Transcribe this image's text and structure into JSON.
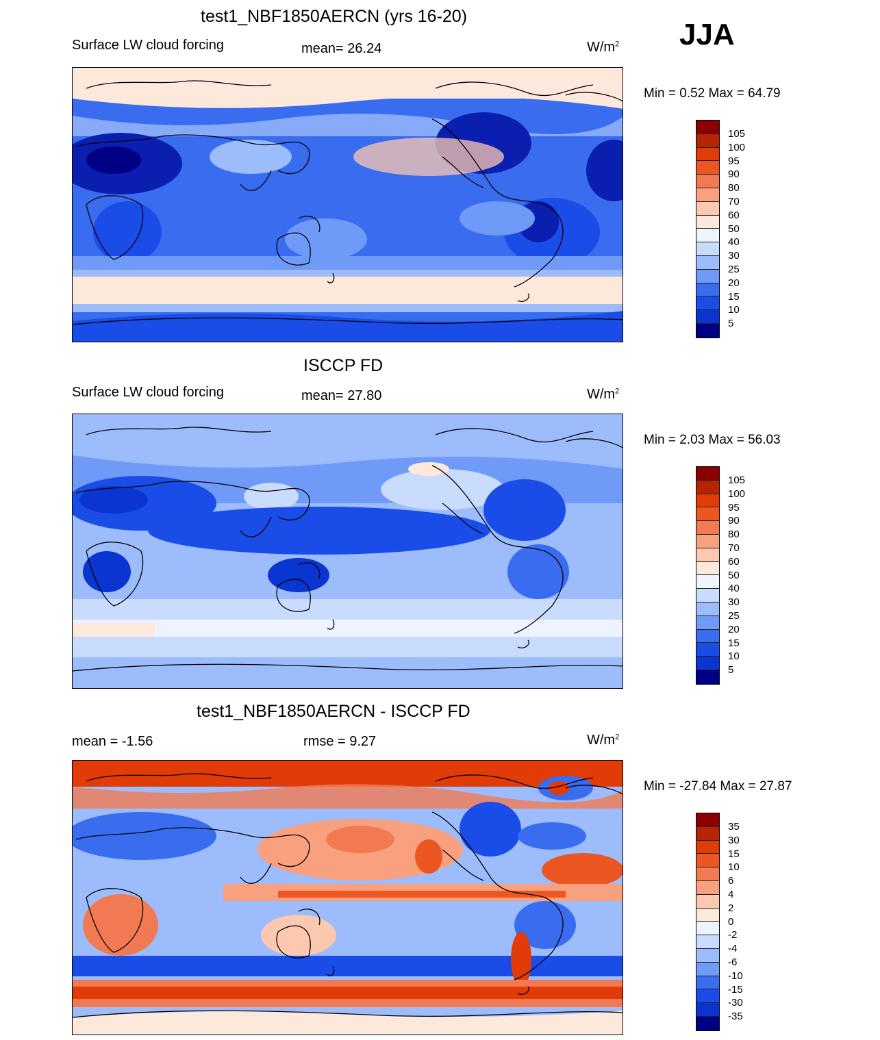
{
  "season": "JJA",
  "colors": {
    "seq": [
      "#000085",
      "#0a1fb0",
      "#0a35d0",
      "#1a4de8",
      "#3a6cf0",
      "#6f9af7",
      "#9cbcfb",
      "#c9dcfd",
      "#eef4fe",
      "#fde8dc",
      "#fcc8b0",
      "#f9a07f",
      "#f27a52",
      "#ec5623",
      "#e13c07",
      "#b52504",
      "#8b0000"
    ],
    "div": [
      "#000085",
      "#0a1fb0",
      "#0a35d0",
      "#1a4de8",
      "#3a6cf0",
      "#6f9af7",
      "#9cbcfb",
      "#c9dcfd",
      "#eef4fe",
      "#fde8dc",
      "#fcc8b0",
      "#f9a07f",
      "#f27a52",
      "#ec5623",
      "#e13c07",
      "#b52504",
      "#8b0000"
    ]
  },
  "panels": [
    {
      "title": "test1_NBF1850AERCN (yrs 16-20)",
      "left_label": "Surface LW cloud forcing",
      "center_label": "mean=  26.24",
      "unit": "W/m",
      "unit_exp": "2",
      "min_max": "Min =   0.52 Max =  64.79",
      "colorbar_ticks": [
        "105",
        "100",
        "95",
        "90",
        "80",
        "70",
        "60",
        "50",
        "40",
        "30",
        "25",
        "20",
        "15",
        "10",
        "5"
      ],
      "map_name": "model-map"
    },
    {
      "title": "ISCCP FD",
      "left_label": "Surface LW cloud forcing",
      "center_label": "mean=  27.80",
      "unit": "W/m",
      "unit_exp": "2",
      "min_max": "Min =   2.03 Max =  56.03",
      "colorbar_ticks": [
        "105",
        "100",
        "95",
        "90",
        "80",
        "70",
        "60",
        "50",
        "40",
        "30",
        "25",
        "20",
        "15",
        "10",
        "5"
      ],
      "map_name": "obs-map"
    },
    {
      "title": "test1_NBF1850AERCN - ISCCP FD",
      "left_label": "mean =  -1.56",
      "center_label": "rmse =   9.27",
      "unit": "W/m",
      "unit_exp": "2",
      "min_max": "Min = -27.84 Max =  27.87",
      "colorbar_ticks": [
        "35",
        "30",
        "15",
        "10",
        "6",
        "4",
        "2",
        "0",
        "-2",
        "-4",
        "-6",
        "-10",
        "-15",
        "-30",
        "-35"
      ],
      "map_name": "difference-map"
    }
  ]
}
